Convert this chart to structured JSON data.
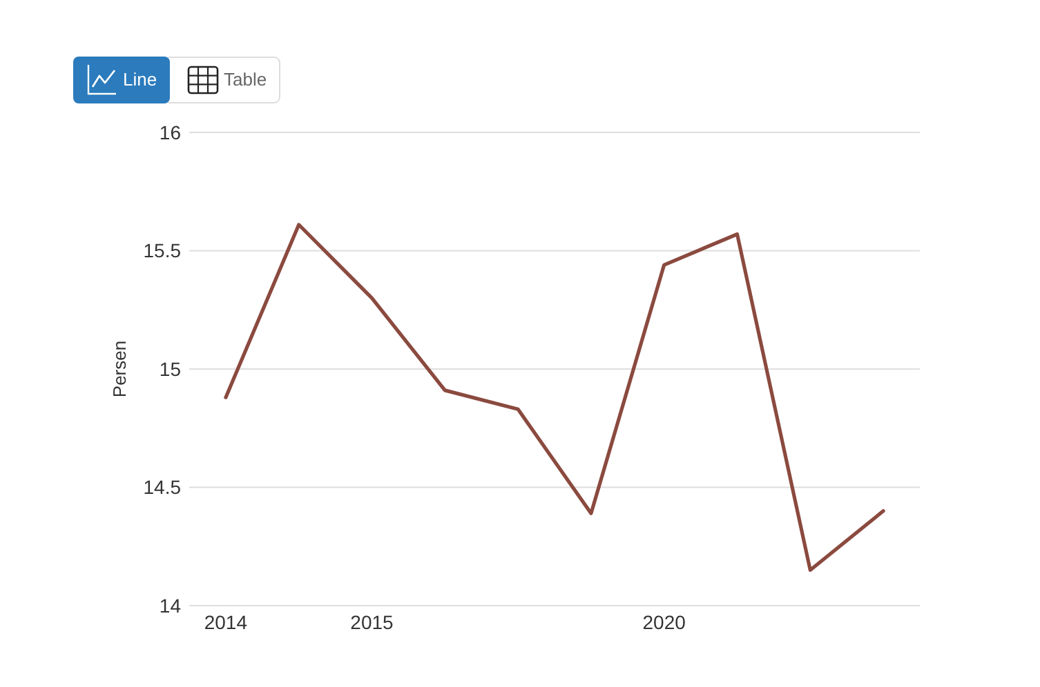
{
  "chart_data": {
    "type": "line",
    "ylabel": "Persen",
    "categories": [
      "2014",
      null,
      "2015",
      null,
      null,
      null,
      "2020",
      null,
      null,
      null
    ],
    "values": [
      14.88,
      15.61,
      15.3,
      14.91,
      14.83,
      14.39,
      15.44,
      15.57,
      14.15,
      14.4
    ],
    "color": "#8b4a3f",
    "ylim": [
      14,
      16
    ],
    "yticks": [
      14,
      14.5,
      15,
      15.5,
      16
    ],
    "grid": "y",
    "annotations": [
      "Line",
      "Table"
    ]
  }
}
